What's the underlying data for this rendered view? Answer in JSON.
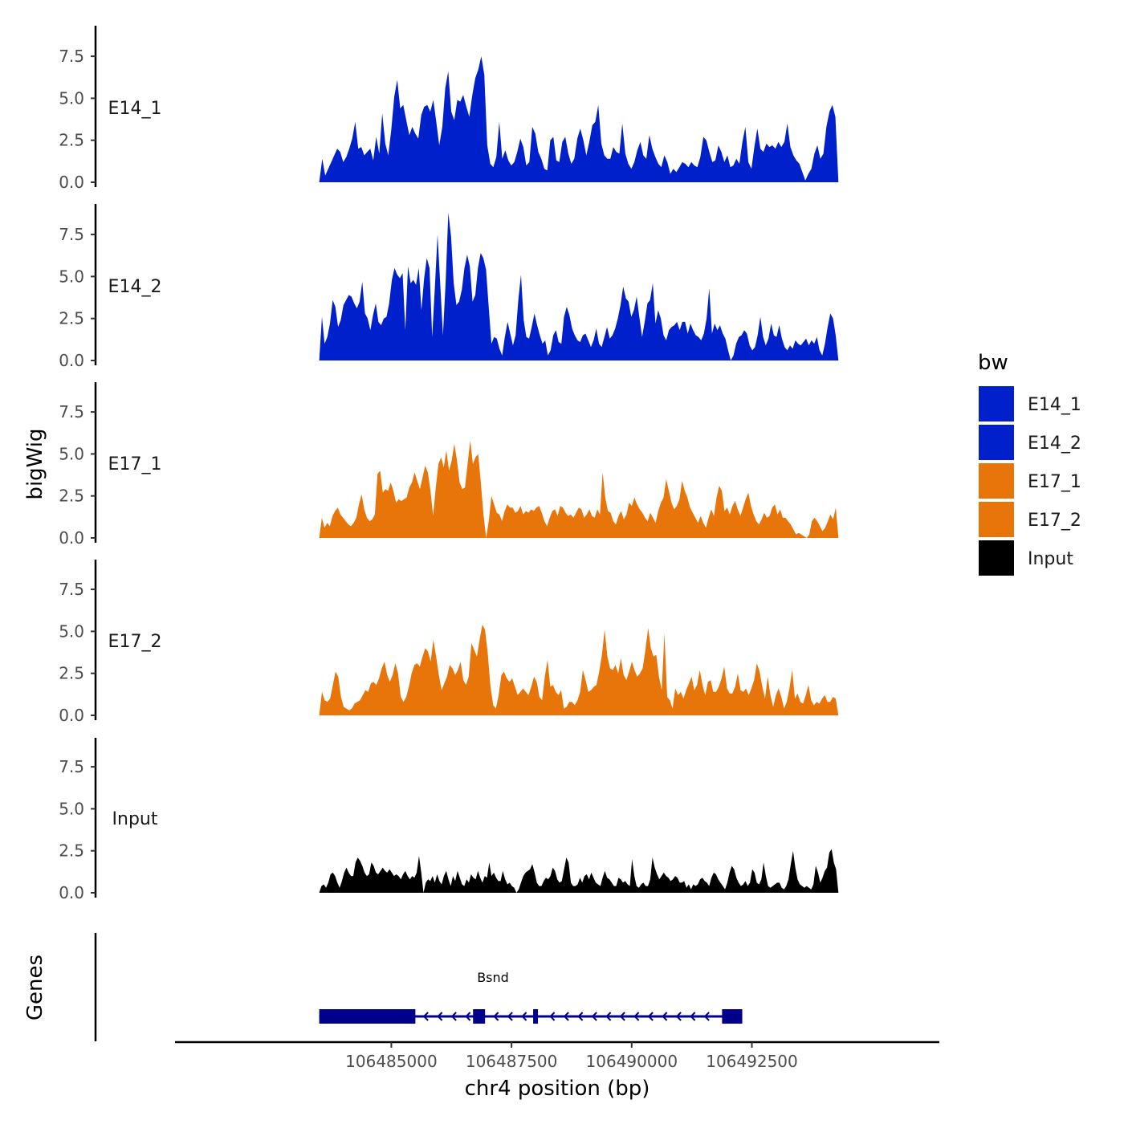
{
  "chart_data": {
    "type": "area",
    "title": "",
    "xlabel": "chr4 position (bp)",
    "ylabel": "bigWig",
    "genes_panel_label": "Genes",
    "x_range": [
      106483500,
      106494300
    ],
    "xlim": [
      106480500,
      106496400
    ],
    "x_ticks": [
      106485000,
      106487500,
      106490000,
      106492500
    ],
    "x_tick_labels": [
      "106485000",
      "106487500",
      "106490000",
      "106492500"
    ],
    "ylim": [
      0,
      9.3
    ],
    "y_ticks": [
      0,
      2.5,
      5,
      7.5
    ],
    "y_tick_labels": [
      "0.0",
      "2.5",
      "5.0",
      "7.5"
    ],
    "legend": {
      "title": "bw",
      "position": "right",
      "entries": [
        {
          "label": "E14_1",
          "color": "#0020CC"
        },
        {
          "label": "E14_2",
          "color": "#0020CC"
        },
        {
          "label": "E17_1",
          "color": "#E8750A"
        },
        {
          "label": "E17_2",
          "color": "#E8750A"
        },
        {
          "label": "Input",
          "color": "#000000"
        }
      ]
    },
    "series": [
      {
        "name": "E14_1",
        "color": "#0020CC",
        "values": [
          0,
          1.4,
          0.4,
          0.8,
          1.2,
          1.6,
          2.0,
          1.8,
          1.2,
          1.5,
          2.0,
          2.6,
          3.6,
          2.0,
          2.1,
          1.6,
          1.8,
          2.0,
          1.3,
          2.7,
          1.7,
          4.1,
          2.3,
          1.6,
          3.1,
          5.1,
          6.1,
          4.4,
          4.6,
          3.7,
          2.8,
          3.3,
          2.9,
          2.6,
          4.0,
          4.5,
          4.6,
          4.2,
          4.9,
          3.6,
          2.2,
          3.3,
          5.6,
          6.6,
          4.2,
          3.7,
          4.9,
          4.8,
          5.2,
          4.5,
          3.9,
          5.2,
          6.2,
          6.7,
          7.5,
          6.4,
          2.2,
          1.1,
          0.9,
          1.5,
          3.6,
          1.4,
          1.9,
          1.3,
          1.0,
          1.2,
          1.8,
          2.6,
          2.1,
          1.0,
          1.2,
          3.3,
          2.9,
          1.8,
          1.4,
          0.8,
          0.7,
          2.5,
          2.7,
          1.3,
          1.2,
          2.4,
          2.7,
          1.7,
          1.1,
          1.4,
          2.6,
          3.2,
          2.5,
          1.6,
          2.4,
          3.4,
          3.6,
          4.6,
          2.3,
          1.6,
          1.4,
          1.4,
          2.1,
          1.8,
          1.7,
          3.5,
          1.7,
          1.1,
          0.8,
          1.2,
          1.9,
          2.4,
          1.6,
          1.4,
          2.8,
          2.0,
          1.5,
          1.1,
          0.9,
          1.6,
          1.2,
          0.5,
          0.8,
          0.6,
          0.9,
          1.2,
          1.1,
          0.9,
          1.2,
          1.0,
          0.9,
          1.5,
          2.7,
          2.5,
          1.8,
          1.2,
          1.3,
          2.2,
          1.8,
          1.2,
          1.6,
          0.9,
          1.0,
          1.4,
          1.1,
          2.4,
          3.3,
          1.2,
          0.8,
          2.1,
          3.2,
          2.0,
          1.8,
          2.3,
          2.1,
          2.2,
          2.0,
          2.4,
          2.1,
          2.4,
          3.5,
          2.1,
          1.6,
          1.3,
          1.1,
          0.6,
          0.1,
          0.5,
          0.8,
          1.7,
          2.2,
          1.4,
          1.7,
          3.3,
          4.2,
          4.6,
          3.9,
          0
        ]
      },
      {
        "name": "E14_2",
        "color": "#0020CC",
        "values": [
          0,
          2.6,
          1.0,
          1.4,
          2.2,
          3.6,
          3.2,
          2.0,
          2.4,
          3.3,
          3.6,
          3.9,
          3.8,
          3.4,
          3.1,
          3.5,
          4.7,
          2.8,
          2.5,
          1.8,
          2.7,
          3.4,
          2.3,
          2.1,
          2.5,
          2.6,
          3.4,
          4.8,
          5.5,
          5.1,
          4.9,
          5.2,
          1.8,
          5.6,
          4.6,
          4.8,
          4.5,
          5.5,
          3.0,
          4.9,
          6.1,
          5.5,
          1.4,
          4.4,
          7.5,
          4.5,
          1.5,
          4.7,
          8.8,
          7.4,
          4.6,
          3.3,
          3.5,
          4.2,
          5.5,
          6.3,
          5.6,
          3.5,
          3.9,
          5.5,
          6.4,
          6.1,
          5.4,
          3.2,
          1.0,
          1.4,
          1.3,
          0.7,
          0.3,
          1.4,
          2.3,
          1.6,
          0.9,
          1.5,
          3.6,
          5.1,
          2.4,
          1.4,
          1.3,
          2.0,
          2.8,
          2.1,
          1.5,
          1.0,
          1.2,
          0.3,
          0.6,
          1.5,
          1.8,
          1.1,
          1.0,
          2.6,
          3.2,
          2.7,
          1.9,
          1.5,
          1.2,
          1.1,
          1.5,
          1.6,
          1.2,
          0.8,
          1.2,
          1.9,
          1.0,
          0.8,
          1.4,
          2.0,
          1.3,
          1.5,
          1.9,
          2.5,
          3.3,
          4.4,
          3.7,
          3.5,
          2.6,
          3.0,
          3.8,
          2.6,
          1.4,
          2.3,
          3.4,
          3.6,
          4.6,
          2.2,
          3.0,
          2.5,
          1.5,
          1.2,
          1.8,
          2.0,
          2.1,
          2.3,
          1.8,
          2.3,
          2.3,
          1.6,
          2.2,
          1.8,
          1.5,
          1.4,
          1.2,
          1.6,
          2.5,
          4.3,
          1.6,
          2.2,
          1.8,
          2.1,
          1.6,
          1.3,
          0.6,
          0,
          0.3,
          1.0,
          1.4,
          1.5,
          1.8,
          1.6,
          0.9,
          0.6,
          0.8,
          1.5,
          2.6,
          1.4,
          0.9,
          1.3,
          2.2,
          1.5,
          1.4,
          2.1,
          1.3,
          0.8,
          0.6,
          0.9,
          0.7,
          1.2,
          1.0,
          0.9,
          1.1,
          1.3,
          0.9,
          1.2,
          1.0,
          1.4,
          0.6,
          0.3,
          1.0,
          2.0,
          2.8,
          2.5,
          1.5,
          0
        ]
      },
      {
        "name": "E17_1",
        "color": "#E8750A",
        "values": [
          0,
          1.2,
          0.6,
          0.9,
          0.7,
          1.3,
          1.6,
          1.8,
          1.4,
          1.2,
          1.0,
          0.8,
          0.7,
          0.9,
          1.2,
          2.0,
          2.6,
          1.7,
          1.2,
          1.0,
          1.1,
          1.4,
          3.8,
          4.0,
          2.7,
          2.9,
          2.8,
          3.3,
          2.8,
          2.1,
          2.3,
          2.2,
          2.3,
          2.4,
          3.0,
          3.3,
          3.9,
          3.4,
          2.9,
          3.6,
          4.3,
          3.9,
          2.8,
          1.3,
          3.0,
          4.4,
          4.8,
          4.2,
          5.2,
          4.0,
          4.6,
          5.6,
          4.6,
          3.3,
          2.9,
          3.0,
          4.4,
          5.8,
          4.4,
          4.8,
          5.0,
          3.3,
          1.4,
          0,
          1.0,
          2.5,
          2.0,
          1.5,
          1.4,
          1.0,
          1.6,
          2.0,
          1.8,
          1.8,
          1.5,
          1.6,
          1.9,
          1.4,
          1.6,
          1.5,
          1.7,
          1.6,
          1.8,
          1.9,
          1.5,
          1.0,
          0.7,
          1.2,
          1.6,
          1.7,
          1.3,
          1.9,
          1.8,
          1.5,
          1.3,
          1.4,
          1.2,
          1.5,
          1.8,
          1.7,
          1.2,
          1.4,
          1.7,
          1.3,
          1.2,
          1.7,
          1.4,
          3.9,
          2.4,
          1.6,
          1.5,
          1.0,
          0.8,
          1.3,
          1.6,
          1.1,
          1.4,
          2.1,
          1.9,
          2.4,
          2.0,
          1.7,
          1.5,
          1.2,
          1.0,
          1.5,
          1.2,
          0.9,
          1.6,
          2.1,
          2.4,
          3.5,
          2.8,
          2.1,
          1.7,
          1.9,
          2.3,
          3.4,
          2.8,
          2.4,
          1.8,
          1.5,
          1.2,
          0.9,
          1.3,
          0.9,
          0.6,
          1.2,
          1.7,
          1.3,
          2.4,
          3.1,
          2.8,
          1.6,
          1.8,
          1.4,
          1.9,
          2.2,
          1.7,
          1.3,
          1.8,
          2.3,
          2.7,
          1.9,
          1.4,
          1.0,
          0.8,
          1.1,
          1.5,
          1.2,
          1.3,
          1.8,
          2.0,
          1.4,
          1.7,
          1.2,
          1.2,
          1.0,
          0.8,
          0.5,
          0.2,
          0.3,
          0.2,
          0.1,
          0,
          0.2,
          1.0,
          1.2,
          1.0,
          0.7,
          0.4,
          0.6,
          1.0,
          1.4,
          1.1,
          1.8,
          0
        ]
      },
      {
        "name": "E17_2",
        "color": "#E8750A",
        "values": [
          0,
          1.4,
          0.9,
          0.8,
          1.0,
          1.8,
          2.6,
          2.3,
          1.1,
          0.5,
          0.4,
          0.3,
          0.4,
          0.7,
          0.8,
          0.9,
          1.2,
          1.5,
          1.4,
          1.9,
          2.0,
          1.8,
          2.2,
          2.8,
          3.2,
          2.4,
          2.0,
          2.4,
          3.1,
          2.5,
          1.1,
          0.8,
          1.1,
          1.7,
          2.5,
          3.0,
          3.1,
          2.9,
          3.5,
          4.0,
          3.8,
          3.2,
          4.5,
          3.5,
          2.4,
          1.5,
          1.9,
          2.3,
          3.0,
          2.8,
          2.4,
          2.7,
          3.2,
          2.1,
          1.8,
          2.3,
          4.3,
          3.9,
          3.5,
          4.5,
          5.4,
          5.1,
          3.7,
          1.7,
          0.6,
          0.4,
          1.2,
          2.4,
          2.6,
          2.2,
          2.0,
          2.2,
          1.7,
          1.2,
          1.4,
          1.6,
          1.4,
          1.2,
          1.7,
          2.3,
          2.0,
          1.1,
          0.9,
          2.3,
          3.3,
          1.7,
          1.8,
          1.4,
          1.2,
          1.5,
          0.4,
          0.5,
          0.8,
          0.8,
          0.6,
          0.9,
          1.4,
          2.7,
          2.1,
          1.4,
          1.5,
          1.7,
          1.8,
          2.6,
          3.6,
          5.1,
          3.5,
          2.8,
          2.7,
          3.0,
          2.5,
          3.4,
          2.4,
          2.1,
          2.6,
          3.2,
          2.7,
          2.3,
          2.5,
          2.8,
          3.9,
          5.2,
          4.0,
          3.5,
          3.6,
          2.3,
          1.5,
          4.9,
          1.1,
          0.9,
          0.4,
          1.6,
          1.2,
          1.4,
          1.0,
          1.5,
          1.9,
          2.3,
          1.5,
          1.8,
          2.7,
          1.8,
          1.2,
          2.0,
          2.1,
          1.4,
          1.4,
          1.7,
          2.2,
          2.9,
          1.6,
          1.3,
          1.3,
          1.7,
          2.5,
          1.5,
          1.4,
          1.6,
          1.2,
          1.6,
          2.1,
          3.1,
          2.6,
          1.7,
          1.0,
          2.3,
          1.2,
          0.5,
          1.2,
          1.6,
          1.1,
          0.4,
          0.8,
          1.6,
          2.7,
          1.0,
          1.3,
          0.8,
          0.7,
          1.2,
          1.8,
          0.9,
          0.6,
          0.8,
          0.7,
          1.0,
          1.2,
          0.8,
          0.8,
          1.1,
          1.0,
          0
        ]
      },
      {
        "name": "Input",
        "color": "#000000",
        "values": [
          0,
          0.4,
          0.5,
          0.3,
          0.6,
          1.1,
          1.2,
          1.0,
          0.6,
          0.3,
          0.7,
          1.2,
          1.5,
          1.2,
          1.0,
          1.0,
          1.8,
          2.1,
          1.9,
          1.6,
          1.2,
          1.0,
          1.1,
          1.8,
          1.6,
          1.2,
          1.1,
          1.3,
          1.5,
          1.3,
          1.2,
          1.4,
          1.2,
          1.0,
          1.1,
          1.0,
          0.8,
          1.1,
          1.3,
          1.0,
          0.8,
          1.0,
          0.9,
          1.2,
          2.2,
          1.2,
          0,
          0.6,
          0.8,
          0.7,
          1.0,
          0.6,
          1.1,
          0.7,
          0.5,
          1.0,
          1.3,
          0.8,
          0.4,
          1.0,
          0.7,
          1.3,
          0.9,
          0.5,
          0.4,
          0.8,
          0.6,
          1.1,
          0.9,
          0.8,
          1.3,
          0.9,
          0.6,
          1.0,
          0.9,
          1.8,
          1.0,
          1.2,
          0.9,
          0.7,
          0.7,
          1.3,
          0.8,
          0.5,
          0.6,
          0.4,
          0.3,
          0,
          0.2,
          0.6,
          1.0,
          1.2,
          1.3,
          1.4,
          1.7,
          1.2,
          0.6,
          0.4,
          0.4,
          0.7,
          0.9,
          0.8,
          1.0,
          1.5,
          1.3,
          0.8,
          0.6,
          0.7,
          1.4,
          2.1,
          1.8,
          0.6,
          0.4,
          0.4,
          0.5,
          0.9,
          0.6,
          1.0,
          1.1,
          0.8,
          1.2,
          0.9,
          0.6,
          0.5,
          0.4,
          0.9,
          1.3,
          0.9,
          0.8,
          0.6,
          0.4,
          0.4,
          0.9,
          0.8,
          0.6,
          0.7,
          0.5,
          0.4,
          2.0,
          1.0,
          0.4,
          0.3,
          0.5,
          0.6,
          0.4,
          0.4,
          0.8,
          2.1,
          1.5,
          1.1,
          0.8,
          1.0,
          1.2,
          1.0,
          0.9,
          0.7,
          0.8,
          1.0,
          0.9,
          0.6,
          0.6,
          0.7,
          0.3,
          0.5,
          0.2,
          0.5,
          0.4,
          0.5,
          0.8,
          0.9,
          0.7,
          0.6,
          0.4,
          0.9,
          1.2,
          1.1,
          0.8,
          0.6,
          0.4,
          0.2,
          0.6,
          1.2,
          1.6,
          1.4,
          0.9,
          0.6,
          0.4,
          0.5,
          0.7,
          0.4,
          0.6,
          1.4,
          1.2,
          0.6,
          0.5,
          0.8,
          1.8,
          1.0,
          0.4,
          0.3,
          0.4,
          0.5,
          0.6,
          0.6,
          0.3,
          0.2,
          0.4,
          0.8,
          1.7,
          2.5,
          1.5,
          0.8,
          0.5,
          0.4,
          0.3,
          0.4,
          0.3,
          0.2,
          0.5,
          1.6,
          1.2,
          0.6,
          0.9,
          1.3,
          1.5,
          2.4,
          2.6,
          1.8,
          1.4,
          0
        ]
      }
    ],
    "genes": [
      {
        "name": "Bsnd",
        "strand": "-",
        "color": "#00008B",
        "start": 106483500,
        "end": 106492300,
        "exons": [
          [
            106483500,
            106485500
          ],
          [
            106486700,
            106486950
          ],
          [
            106487950,
            106488050
          ],
          [
            106491880,
            106492300
          ]
        ]
      }
    ]
  }
}
